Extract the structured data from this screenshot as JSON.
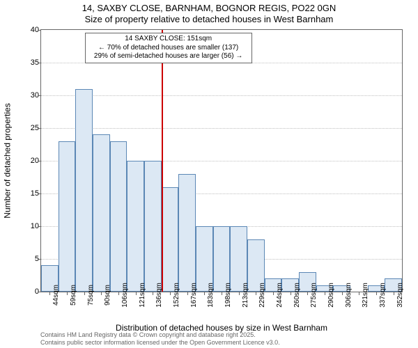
{
  "title_line1": "14, SAXBY CLOSE, BARNHAM, BOGNOR REGIS, PO22 0GN",
  "title_line2": "Size of property relative to detached houses in West Barnham",
  "ylabel": "Number of detached properties",
  "xlabel": "Distribution of detached houses by size in West Barnham",
  "footer_line1": "Contains HM Land Registry data © Crown copyright and database right 2025.",
  "footer_line2": "Contains public sector information licensed under the Open Government Licence v3.0.",
  "annotation": {
    "line1": "14 SAXBY CLOSE: 151sqm",
    "line2": "← 70% of detached houses are smaller (137)",
    "line3": "29% of semi-detached houses are larger (56) →"
  },
  "chart": {
    "type": "histogram",
    "ylim": [
      0,
      40
    ],
    "ytick_step": 5,
    "xtick_labels": [
      "44sqm",
      "59sqm",
      "75sqm",
      "90sqm",
      "106sqm",
      "121sqm",
      "136sqm",
      "152sqm",
      "167sqm",
      "183sqm",
      "198sqm",
      "213sqm",
      "229sqm",
      "244sqm",
      "260sqm",
      "275sqm",
      "290sqm",
      "306sqm",
      "321sqm",
      "337sqm",
      "352sqm"
    ],
    "values": [
      4,
      23,
      31,
      24,
      23,
      20,
      20,
      16,
      18,
      10,
      10,
      10,
      8,
      2,
      2,
      3,
      1,
      1,
      0,
      1,
      2
    ],
    "bar_fill": "#dce8f4",
    "bar_border": "#5b87b5",
    "grid_color": "#bfbfbf",
    "background_color": "#ffffff",
    "marker_color": "#cc0000",
    "marker_x_index": 7,
    "title_fontsize": 13,
    "label_fontsize": 12,
    "tick_fontsize": 11,
    "annotation_fontsize": 10
  }
}
